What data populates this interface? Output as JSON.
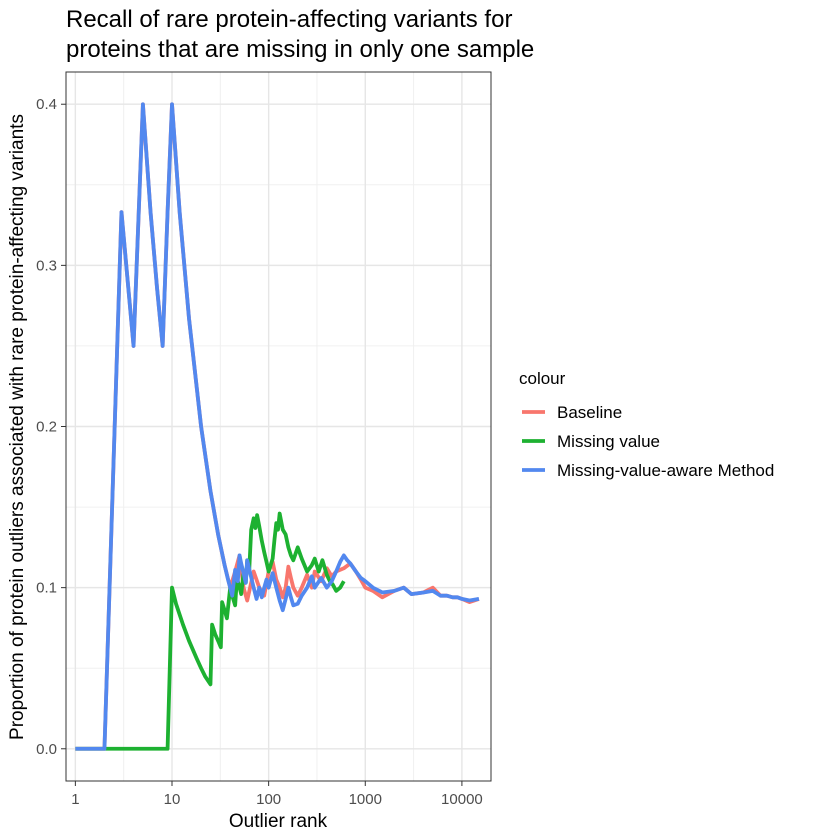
{
  "chart_data": {
    "type": "line",
    "title": "Recall of rare protein-affecting variants for proteins that are missing in only one sample",
    "title_lines": [
      "Recall of rare protein-affecting variants for",
      "proteins that are missing in only one sample"
    ],
    "xlabel": "Outlier rank",
    "ylabel": "Proportion of protein outliers associated with rare protein-affecting variants",
    "x_scale": "log10",
    "xlim": [
      0.8,
      20000
    ],
    "ylim": [
      -0.02,
      0.42
    ],
    "x_ticks": [
      1,
      10,
      100,
      1000,
      10000
    ],
    "x_tick_labels": [
      "1",
      "10",
      "100",
      "1000",
      "10000"
    ],
    "y_ticks": [
      0.0,
      0.1,
      0.2,
      0.3,
      0.4
    ],
    "y_tick_labels": [
      "0.0",
      "0.1",
      "0.2",
      "0.3",
      "0.4"
    ],
    "grid": true,
    "legend_title": "colour",
    "legend_position": "right",
    "series": [
      {
        "name": "Baseline",
        "color": "#F8766D",
        "x": [
          1,
          2,
          3,
          4,
          5,
          6,
          7,
          8,
          9,
          10,
          12,
          15,
          20,
          25,
          30,
          35,
          40,
          45,
          50,
          55,
          60,
          70,
          80,
          90,
          100,
          110,
          120,
          130,
          140,
          150,
          160,
          170,
          180,
          200,
          220,
          250,
          280,
          300,
          350,
          400,
          450,
          500,
          600,
          700,
          800,
          900,
          1000,
          1200,
          1500,
          2000,
          2500,
          3000,
          4000,
          5000,
          6000,
          7000,
          8000,
          9000,
          10000,
          12000,
          15000
        ],
        "values": [
          0,
          0,
          0.333,
          0.25,
          0.4,
          0.333,
          0.286,
          0.25,
          0.333,
          0.4,
          0.333,
          0.267,
          0.2,
          0.16,
          0.133,
          0.114,
          0.1,
          0.11,
          0.12,
          0.1,
          0.092,
          0.11,
          0.1,
          0.095,
          0.11,
          0.116,
          0.105,
          0.1,
          0.094,
          0.1,
          0.113,
          0.106,
          0.1,
          0.095,
          0.1,
          0.108,
          0.1,
          0.11,
          0.104,
          0.112,
          0.107,
          0.11,
          0.112,
          0.115,
          0.11,
          0.105,
          0.1,
          0.098,
          0.094,
          0.098,
          0.1,
          0.096,
          0.097,
          0.1,
          0.095,
          0.095,
          0.094,
          0.094,
          0.093,
          0.091,
          0.093
        ]
      },
      {
        "name": "Missing value",
        "color": "#1DB131",
        "x": [
          1,
          2,
          3,
          5,
          7,
          9,
          10,
          11,
          13,
          15,
          18,
          20,
          22,
          25,
          26,
          28,
          30,
          32,
          33,
          35,
          37,
          40,
          42,
          45,
          47,
          50,
          52,
          55,
          58,
          60,
          63,
          66,
          70,
          73,
          76,
          80,
          85,
          90,
          95,
          100,
          105,
          110,
          115,
          120,
          125,
          130,
          135,
          140,
          150,
          160,
          170,
          180,
          200,
          220,
          250,
          280,
          300,
          330,
          360,
          400,
          430,
          460,
          500,
          550,
          600
        ],
        "values": [
          0,
          0,
          0,
          0,
          0,
          0,
          0.1,
          0.09,
          0.077,
          0.067,
          0.056,
          0.05,
          0.045,
          0.04,
          0.077,
          0.071,
          0.067,
          0.063,
          0.091,
          0.086,
          0.081,
          0.1,
          0.095,
          0.089,
          0.106,
          0.1,
          0.096,
          0.109,
          0.103,
          0.117,
          0.111,
          0.136,
          0.143,
          0.137,
          0.145,
          0.138,
          0.129,
          0.122,
          0.116,
          0.11,
          0.114,
          0.118,
          0.13,
          0.14,
          0.136,
          0.146,
          0.141,
          0.136,
          0.133,
          0.125,
          0.12,
          0.117,
          0.125,
          0.118,
          0.11,
          0.114,
          0.118,
          0.11,
          0.117,
          0.108,
          0.104,
          0.102,
          0.098,
          0.1,
          0.104
        ]
      },
      {
        "name": "Missing-value-aware Method",
        "color": "#5288EF",
        "x": [
          1,
          2,
          3,
          4,
          5,
          6,
          7,
          8,
          9,
          10,
          12,
          15,
          20,
          25,
          30,
          35,
          38,
          40,
          42,
          45,
          48,
          50,
          52,
          55,
          58,
          60,
          65,
          70,
          75,
          80,
          85,
          90,
          95,
          100,
          110,
          120,
          130,
          140,
          150,
          160,
          170,
          180,
          200,
          220,
          250,
          280,
          300,
          350,
          400,
          450,
          500,
          550,
          600,
          650,
          700,
          800,
          900,
          1000,
          1200,
          1500,
          2000,
          2500,
          3000,
          4000,
          5000,
          6000,
          7000,
          8000,
          9000,
          10000,
          12000,
          15000
        ],
        "values": [
          0,
          0,
          0.333,
          0.25,
          0.4,
          0.333,
          0.286,
          0.25,
          0.333,
          0.4,
          0.333,
          0.267,
          0.2,
          0.16,
          0.133,
          0.114,
          0.105,
          0.1,
          0.095,
          0.111,
          0.104,
          0.12,
          0.115,
          0.109,
          0.103,
          0.117,
          0.108,
          0.1,
          0.093,
          0.1,
          0.094,
          0.1,
          0.105,
          0.1,
          0.109,
          0.1,
          0.092,
          0.086,
          0.093,
          0.1,
          0.094,
          0.089,
          0.09,
          0.095,
          0.1,
          0.107,
          0.1,
          0.106,
          0.1,
          0.104,
          0.11,
          0.116,
          0.12,
          0.117,
          0.115,
          0.11,
          0.106,
          0.104,
          0.1,
          0.097,
          0.098,
          0.1,
          0.096,
          0.097,
          0.098,
          0.095,
          0.095,
          0.094,
          0.094,
          0.093,
          0.092,
          0.093
        ]
      }
    ]
  }
}
